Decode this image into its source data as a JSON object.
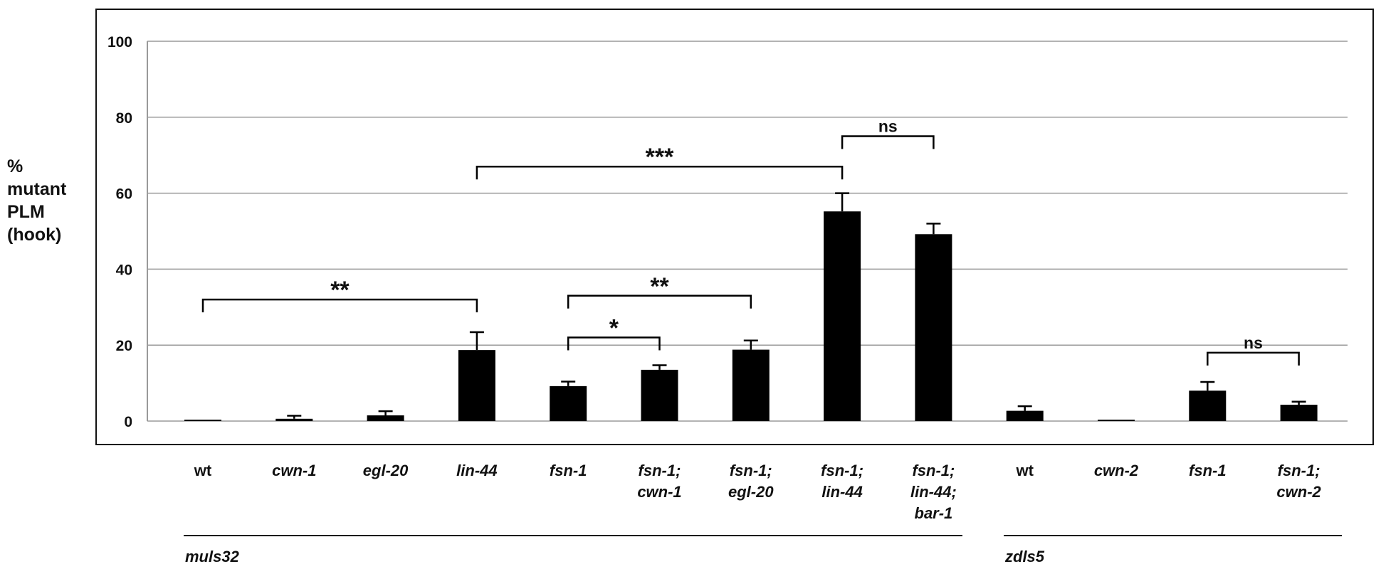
{
  "chart_data": {
    "type": "bar",
    "ylabel": [
      "%",
      "mutant",
      "PLM",
      "(hook)"
    ],
    "ylim": [
      0,
      100
    ],
    "yticks": [
      0,
      20,
      40,
      60,
      80,
      100
    ],
    "grid": true,
    "categories": [
      [
        "wt"
      ],
      [
        "cwn-1"
      ],
      [
        "egl-20"
      ],
      [
        "lin-44"
      ],
      [
        "fsn-1"
      ],
      [
        "fsn-1;",
        "cwn-1"
      ],
      [
        "fsn-1;",
        "egl-20"
      ],
      [
        "fsn-1;",
        "lin-44"
      ],
      [
        "fsn-1;",
        "lin-44;",
        "bar-1"
      ],
      [
        "wt"
      ],
      [
        "cwn-2"
      ],
      [
        "fsn-1"
      ],
      [
        "fsn-1;",
        "cwn-2"
      ]
    ],
    "values": [
      0,
      0.6,
      1.5,
      18.7,
      9.2,
      13.5,
      18.8,
      55.2,
      49.2,
      2.7,
      0.2,
      8.0,
      4.3
    ],
    "errors": [
      0,
      0.8,
      1.1,
      4.7,
      1.2,
      1.2,
      2.4,
      4.8,
      2.8,
      1.2,
      0,
      2.3,
      0.8
    ],
    "significance": [
      {
        "from": 0,
        "to": 3,
        "y": 32,
        "label": "**"
      },
      {
        "from": 3,
        "to": 7,
        "y": 67,
        "label": "***"
      },
      {
        "from": 4,
        "to": 5,
        "y": 22,
        "label": "*"
      },
      {
        "from": 4,
        "to": 6,
        "y": 33,
        "label": "**"
      },
      {
        "from": 7,
        "to": 8,
        "y": 75,
        "label": "ns"
      },
      {
        "from": 11,
        "to": 12,
        "y": 18,
        "label": "ns"
      }
    ],
    "groups": [
      {
        "label": "muls32",
        "from": 0,
        "to": 8
      },
      {
        "label": "zdls5",
        "from": 9,
        "to": 12
      }
    ]
  }
}
